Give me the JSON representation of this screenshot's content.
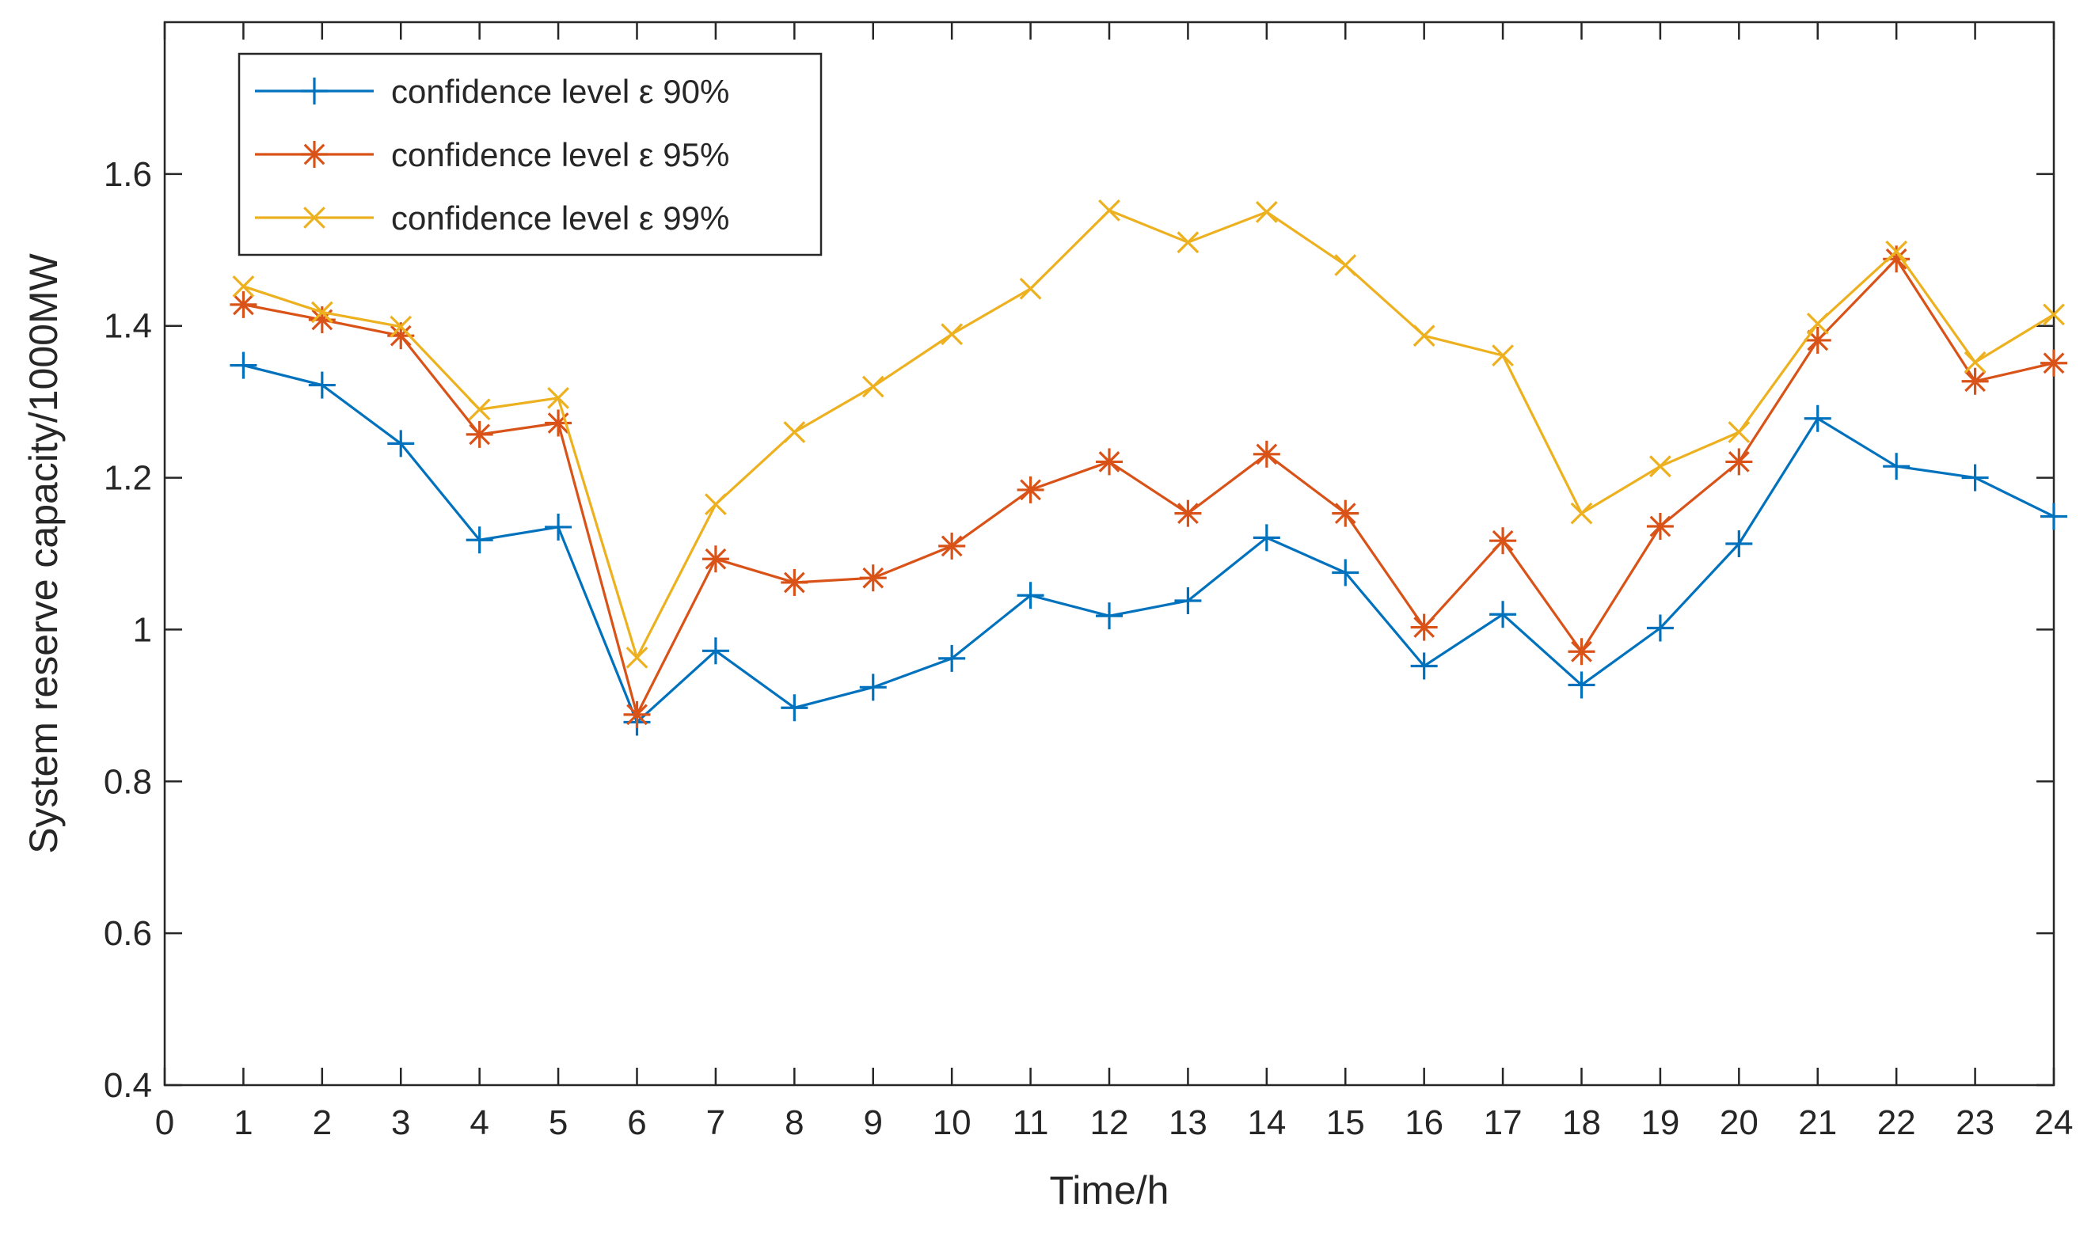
{
  "chart_data": {
    "type": "line",
    "title": "",
    "xlabel": "Time/h",
    "ylabel": "System reserve capacity/1000MW",
    "xlim": [
      0,
      24
    ],
    "ylim": [
      0.4,
      1.8
    ],
    "xticks": [
      0,
      1,
      2,
      3,
      4,
      5,
      6,
      7,
      8,
      9,
      10,
      11,
      12,
      13,
      14,
      15,
      16,
      17,
      18,
      19,
      20,
      21,
      22,
      23,
      24
    ],
    "xtick_labels": [
      "0",
      "1",
      "2",
      "3",
      "4",
      "5",
      "6",
      "7",
      "8",
      "9",
      "10",
      "11",
      "12",
      "13",
      "14",
      "15",
      "16",
      "17",
      "18",
      "19",
      "20",
      "21",
      "22",
      "23",
      "24"
    ],
    "yticks": [
      0.4,
      0.6,
      0.8,
      1.0,
      1.2,
      1.4,
      1.6
    ],
    "ytick_labels": [
      "0.4",
      "0.6",
      "0.8",
      "1",
      "1.2",
      "1.4",
      "1.6"
    ],
    "grid": false,
    "legend_position": "top-left",
    "x": [
      1,
      2,
      3,
      4,
      5,
      6,
      7,
      8,
      9,
      10,
      11,
      12,
      13,
      14,
      15,
      16,
      17,
      18,
      19,
      20,
      21,
      22,
      23,
      24
    ],
    "series": [
      {
        "name": "confidence level ε 90%",
        "color": "#0072BD",
        "marker": "plus",
        "values": [
          1.348,
          1.322,
          1.245,
          1.118,
          1.135,
          0.878,
          0.972,
          0.897,
          0.924,
          0.962,
          1.045,
          1.018,
          1.038,
          1.121,
          1.075,
          0.952,
          1.02,
          0.927,
          1.002,
          1.113,
          1.278,
          1.215,
          1.2,
          1.149
        ]
      },
      {
        "name": "confidence level ε 95%",
        "color": "#D95319",
        "marker": "asterisk",
        "values": [
          1.428,
          1.408,
          1.387,
          1.257,
          1.272,
          0.888,
          1.093,
          1.062,
          1.068,
          1.11,
          1.184,
          1.221,
          1.153,
          1.231,
          1.153,
          1.003,
          1.117,
          0.971,
          1.136,
          1.221,
          1.381,
          1.488,
          1.327,
          1.351
        ]
      },
      {
        "name": "confidence level ε 99%",
        "color": "#EDB120",
        "marker": "cross",
        "values": [
          1.452,
          1.418,
          1.399,
          1.29,
          1.305,
          0.963,
          1.165,
          1.26,
          1.32,
          1.389,
          1.449,
          1.552,
          1.51,
          1.55,
          1.48,
          1.387,
          1.361,
          1.153,
          1.215,
          1.26,
          1.403,
          1.498,
          1.352,
          1.415
        ]
      }
    ]
  }
}
